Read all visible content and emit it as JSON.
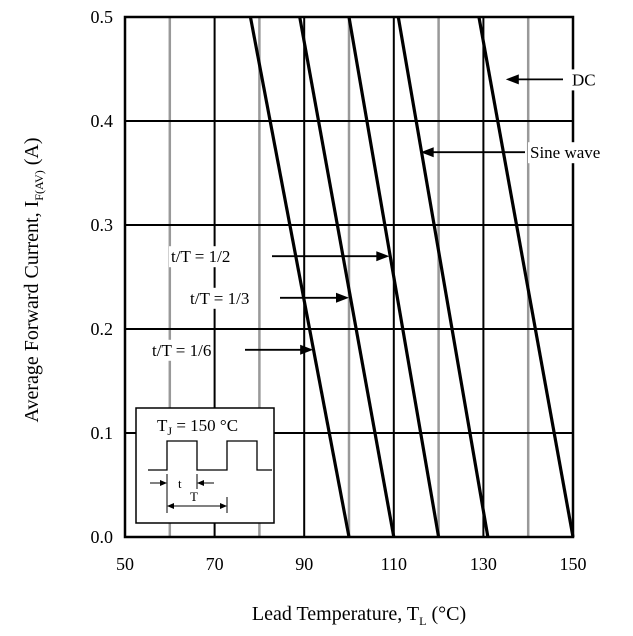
{
  "chart_data": {
    "type": "line",
    "title": "",
    "xlabel": "Lead Temperature, T",
    "xlabel_sub": "L",
    "xlabel_unit": " (°C)",
    "ylabel": "Average Forward Current, I",
    "ylabel_sub": "F(AV)",
    "ylabel_unit": " (A)",
    "xlim": [
      50,
      150
    ],
    "ylim": [
      0,
      0.5
    ],
    "x_ticks": [
      50,
      70,
      90,
      110,
      130,
      150
    ],
    "x_tick_labels": [
      "50",
      "70",
      "90",
      "110",
      "130",
      "150"
    ],
    "x_minor_gridlines": [
      60,
      80,
      100,
      120,
      140
    ],
    "y_ticks": [
      0,
      0.1,
      0.2,
      0.3,
      0.4,
      0.5
    ],
    "y_tick_labels": [
      "0.0",
      "0.1",
      "0.2",
      "0.3",
      "0.4",
      "0.5"
    ],
    "grid": true,
    "series": [
      {
        "name": "t/T = 1/6",
        "x": [
          100,
          78
        ],
        "y": [
          0,
          0.5
        ]
      },
      {
        "name": "t/T = 1/3",
        "x": [
          110,
          89
        ],
        "y": [
          0,
          0.5
        ]
      },
      {
        "name": "t/T = 1/2",
        "x": [
          120,
          100
        ],
        "y": [
          0,
          0.5
        ]
      },
      {
        "name": "Sine wave",
        "x": [
          131,
          111
        ],
        "y": [
          0,
          0.5
        ]
      },
      {
        "name": "DC",
        "x": [
          150,
          129
        ],
        "y": [
          0,
          0.5
        ]
      }
    ],
    "annotations": [
      {
        "text": "DC",
        "target_x": 135,
        "target_y": 0.44
      },
      {
        "text": "Sine wave",
        "target_x": 116,
        "target_y": 0.37
      },
      {
        "text": "t/T = 1/2",
        "target_x": 109,
        "target_y": 0.27
      },
      {
        "text": "t/T = 1/3",
        "target_x": 100,
        "target_y": 0.23
      },
      {
        "text": "t/T = 1/6",
        "target_x": 92,
        "target_y": 0.18
      }
    ],
    "inset": {
      "title": "T",
      "title_sub": "J",
      "title_rest": " = 150 °C",
      "label_t": "t",
      "label_T": "T"
    }
  }
}
